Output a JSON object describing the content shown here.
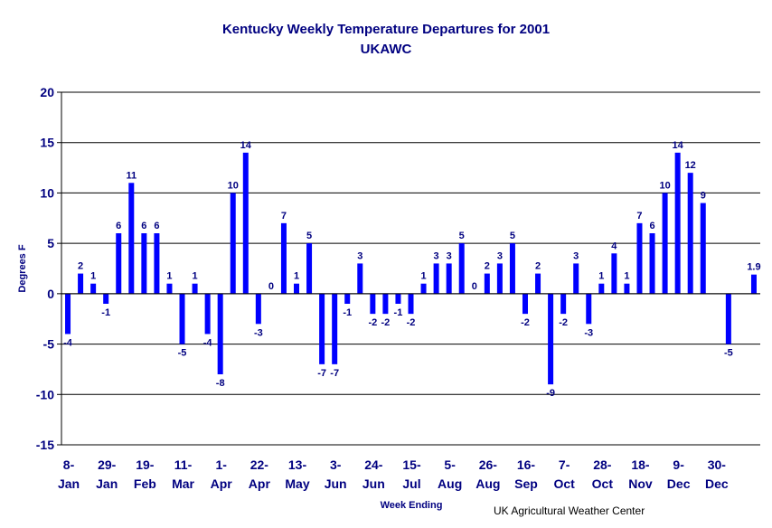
{
  "chart_data": {
    "type": "bar",
    "title": "Kentucky Weekly Temperature Departures for 2001",
    "subtitle": "UKAWC",
    "ylabel": "Degrees F",
    "xlabel": "Week Ending",
    "credit": "UK Agricultural Weather Center",
    "ylim": [
      -15,
      20
    ],
    "yticks": [
      "20",
      "15",
      "10",
      "5",
      "0",
      "-5",
      "-10",
      "-15"
    ],
    "grid": true,
    "bar_color": "#0000ff",
    "text_color": "#000080",
    "xtick_labels": [
      {
        "line1": "8-",
        "line2": "Jan"
      },
      {
        "line1": "29-",
        "line2": "Jan"
      },
      {
        "line1": "19-",
        "line2": "Feb"
      },
      {
        "line1": "11-",
        "line2": "Mar"
      },
      {
        "line1": "1-",
        "line2": "Apr"
      },
      {
        "line1": "22-",
        "line2": "Apr"
      },
      {
        "line1": "13-",
        "line2": "May"
      },
      {
        "line1": "3-",
        "line2": "Jun"
      },
      {
        "line1": "24-",
        "line2": "Jun"
      },
      {
        "line1": "15-",
        "line2": "Jul"
      },
      {
        "line1": "5-",
        "line2": "Aug"
      },
      {
        "line1": "26-",
        "line2": "Aug"
      },
      {
        "line1": "16-",
        "line2": "Sep"
      },
      {
        "line1": "7-",
        "line2": "Oct"
      },
      {
        "line1": "28-",
        "line2": "Oct"
      },
      {
        "line1": "18-",
        "line2": "Nov"
      },
      {
        "line1": "9-",
        "line2": "Dec"
      },
      {
        "line1": "30-",
        "line2": "Dec"
      }
    ],
    "values": [
      -4,
      2,
      1,
      -1,
      6,
      11,
      6,
      6,
      1,
      -5,
      1,
      -4,
      -8,
      10,
      14,
      -3,
      0,
      7,
      1,
      5,
      -7,
      -7,
      -1,
      3,
      -2,
      -2,
      -1,
      -2,
      1,
      3,
      3,
      5,
      0,
      2,
      3,
      5,
      -2,
      2,
      -9,
      -2,
      3,
      -3,
      1,
      4,
      1,
      7,
      6,
      10,
      14,
      12,
      9,
      0,
      -5,
      0,
      1.9
    ],
    "labels": [
      "-4",
      "2",
      "1",
      "-1",
      "6",
      "11",
      "6",
      "6",
      "1",
      "-5",
      "1",
      "-4",
      "-8",
      "10",
      "14",
      "-3",
      "0",
      "7",
      "1",
      "5",
      "-7",
      "-7",
      "-1",
      "3",
      "-2",
      "-2",
      "-1",
      "-2",
      "1",
      "3",
      "3",
      "5",
      "0",
      "2",
      "3",
      "5",
      "-2",
      "2",
      "-9",
      "-2",
      "3",
      "-3",
      "1",
      "4",
      "1",
      "7",
      "6",
      "10",
      "14",
      "12",
      "9",
      "",
      "-5",
      "",
      "1.9"
    ]
  }
}
